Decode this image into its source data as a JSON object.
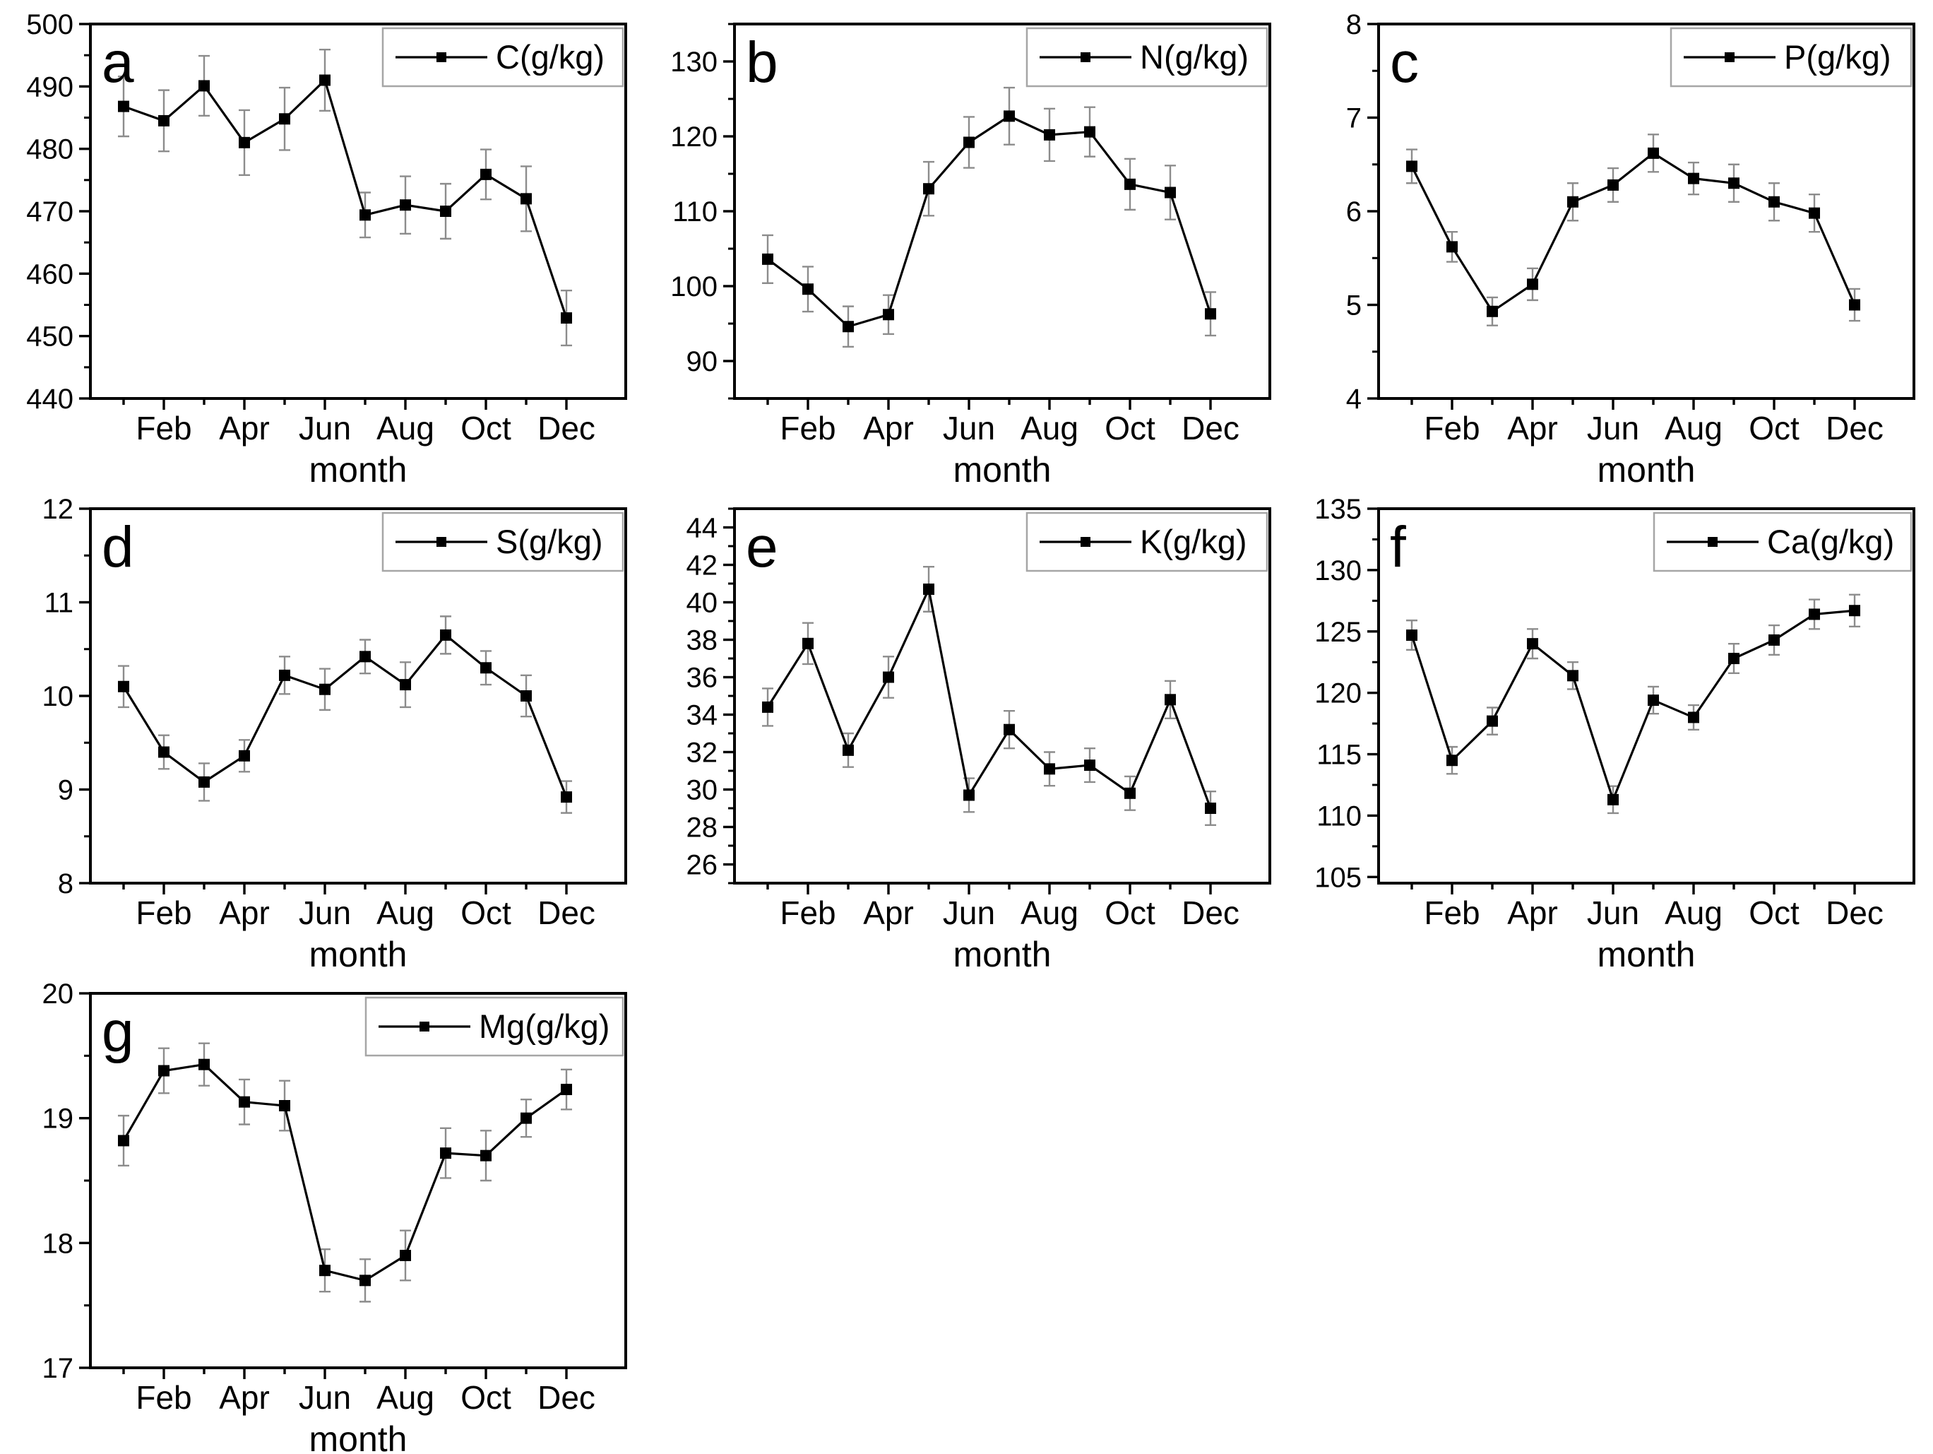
{
  "figure": {
    "background": "#ffffff",
    "xlabel": "month",
    "months": [
      "Jan",
      "Feb",
      "Mar",
      "Apr",
      "May",
      "Jun",
      "Jul",
      "Aug",
      "Sep",
      "Oct",
      "Nov",
      "Dec"
    ],
    "x_tick_labels_shown": [
      "Feb",
      "Apr",
      "Jun",
      "Aug",
      "Oct",
      "Dec"
    ],
    "colors": {
      "line": "#000000",
      "marker": "#000000",
      "error_bar": "#8c8c8c",
      "legend_border": "#a6a6a6",
      "axis": "#000000",
      "text": "#000000"
    }
  },
  "chart_data": [
    {
      "type": "line",
      "panel_letter": "a",
      "legend": "C(g/kg)",
      "x": [
        "Jan",
        "Feb",
        "Mar",
        "Apr",
        "May",
        "Jun",
        "Jul",
        "Aug",
        "Sep",
        "Oct",
        "Nov",
        "Dec"
      ],
      "values": [
        486.8,
        484.5,
        490.1,
        481.0,
        484.8,
        491.0,
        469.4,
        471.0,
        470.0,
        475.9,
        472.0,
        452.9
      ],
      "errors": [
        4.8,
        4.9,
        4.8,
        5.2,
        5.0,
        4.9,
        3.6,
        4.6,
        4.4,
        4.0,
        5.2,
        4.4
      ],
      "ylim": [
        440,
        500
      ],
      "yticks": [
        440,
        450,
        460,
        470,
        480,
        490,
        500
      ],
      "ytick_labels": [
        "440",
        "450",
        "460",
        "470",
        "480",
        "490",
        "500"
      ],
      "yminor_step": 5,
      "xlabel": "month",
      "grid": false,
      "legend_position": "top-right",
      "marker": "square"
    },
    {
      "type": "line",
      "panel_letter": "b",
      "legend": "N(g/kg)",
      "x": [
        "Jan",
        "Feb",
        "Mar",
        "Apr",
        "May",
        "Jun",
        "Jul",
        "Aug",
        "Sep",
        "Oct",
        "Nov",
        "Dec"
      ],
      "values": [
        103.6,
        99.6,
        94.6,
        96.2,
        113.0,
        119.2,
        122.7,
        120.2,
        120.6,
        113.6,
        112.5,
        96.3
      ],
      "errors": [
        3.2,
        3.0,
        2.7,
        2.6,
        3.6,
        3.4,
        3.8,
        3.5,
        3.3,
        3.4,
        3.6,
        2.9
      ],
      "ylim": [
        85,
        135
      ],
      "yticks": [
        90,
        100,
        110,
        120,
        130
      ],
      "ytick_labels": [
        "90",
        "100",
        "110",
        "120",
        "130"
      ],
      "yminor_step": 5,
      "xlabel": "month",
      "grid": false,
      "legend_position": "top-right",
      "marker": "square"
    },
    {
      "type": "line",
      "panel_letter": "c",
      "legend": "P(g/kg)",
      "x": [
        "Jan",
        "Feb",
        "Mar",
        "Apr",
        "May",
        "Jun",
        "Jul",
        "Aug",
        "Sep",
        "Oct",
        "Nov",
        "Dec"
      ],
      "values": [
        6.48,
        5.62,
        4.93,
        5.22,
        6.1,
        6.28,
        6.62,
        6.35,
        6.3,
        6.1,
        5.98,
        5.0
      ],
      "errors": [
        0.18,
        0.16,
        0.15,
        0.17,
        0.2,
        0.18,
        0.2,
        0.17,
        0.2,
        0.2,
        0.2,
        0.17
      ],
      "ylim": [
        4,
        8
      ],
      "yticks": [
        4,
        5,
        6,
        7,
        8
      ],
      "ytick_labels": [
        "4",
        "5",
        "6",
        "7",
        "8"
      ],
      "yminor_step": 0.5,
      "xlabel": "month",
      "grid": false,
      "legend_position": "top-right",
      "marker": "square"
    },
    {
      "type": "line",
      "panel_letter": "d",
      "legend": "S(g/kg)",
      "x": [
        "Jan",
        "Feb",
        "Mar",
        "Apr",
        "May",
        "Jun",
        "Jul",
        "Aug",
        "Sep",
        "Oct",
        "Nov",
        "Dec"
      ],
      "values": [
        10.1,
        9.4,
        9.08,
        9.36,
        10.22,
        10.07,
        10.42,
        10.12,
        10.65,
        10.3,
        10.0,
        8.92
      ],
      "errors": [
        0.22,
        0.18,
        0.2,
        0.17,
        0.2,
        0.22,
        0.18,
        0.24,
        0.2,
        0.18,
        0.22,
        0.17
      ],
      "ylim": [
        8,
        12
      ],
      "yticks": [
        8,
        9,
        10,
        11,
        12
      ],
      "ytick_labels": [
        "8",
        "9",
        "10",
        "11",
        "12"
      ],
      "yminor_step": 0.5,
      "xlabel": "month",
      "grid": false,
      "legend_position": "top-right",
      "marker": "square"
    },
    {
      "type": "line",
      "panel_letter": "e",
      "legend": "K(g/kg)",
      "x": [
        "Jan",
        "Feb",
        "Mar",
        "Apr",
        "May",
        "Jun",
        "Jul",
        "Aug",
        "Sep",
        "Oct",
        "Nov",
        "Dec"
      ],
      "values": [
        34.4,
        37.8,
        32.1,
        36.0,
        40.7,
        29.7,
        33.2,
        31.1,
        31.3,
        29.8,
        34.8,
        29.0
      ],
      "errors": [
        1.0,
        1.1,
        0.9,
        1.1,
        1.2,
        0.9,
        1.0,
        0.9,
        0.9,
        0.9,
        1.0,
        0.9
      ],
      "ylim": [
        25,
        45
      ],
      "yticks": [
        26,
        28,
        30,
        32,
        34,
        36,
        38,
        40,
        42,
        44
      ],
      "ytick_labels": [
        "26",
        "28",
        "30",
        "32",
        "34",
        "36",
        "38",
        "40",
        "42",
        "44"
      ],
      "yminor_step": 1,
      "xlabel": "month",
      "grid": false,
      "legend_position": "top-right",
      "marker": "square"
    },
    {
      "type": "line",
      "panel_letter": "f",
      "legend": "Ca(g/kg)",
      "x": [
        "Jan",
        "Feb",
        "Mar",
        "Apr",
        "May",
        "Jun",
        "Jul",
        "Aug",
        "Sep",
        "Oct",
        "Nov",
        "Dec"
      ],
      "values": [
        124.7,
        114.5,
        117.7,
        124.0,
        121.4,
        111.3,
        119.4,
        118.0,
        122.8,
        124.3,
        126.4,
        126.7
      ],
      "errors": [
        1.2,
        1.1,
        1.1,
        1.2,
        1.1,
        1.1,
        1.1,
        1.0,
        1.2,
        1.2,
        1.2,
        1.3
      ],
      "ylim": [
        104.5,
        135
      ],
      "yticks": [
        105,
        110,
        115,
        120,
        125,
        130,
        135
      ],
      "ytick_labels": [
        "105",
        "110",
        "115",
        "120",
        "125",
        "130",
        "135"
      ],
      "yminor_step": 2.5,
      "xlabel": "month",
      "grid": false,
      "legend_position": "top-right",
      "marker": "square"
    },
    {
      "type": "line",
      "panel_letter": "g",
      "legend": "Mg(g/kg)",
      "x": [
        "Jan",
        "Feb",
        "Mar",
        "Apr",
        "May",
        "Jun",
        "Jul",
        "Aug",
        "Sep",
        "Oct",
        "Nov",
        "Dec"
      ],
      "values": [
        18.82,
        19.38,
        19.43,
        19.13,
        19.1,
        17.78,
        17.7,
        17.9,
        18.72,
        18.7,
        19.0,
        19.23
      ],
      "errors": [
        0.2,
        0.18,
        0.17,
        0.18,
        0.2,
        0.17,
        0.17,
        0.2,
        0.2,
        0.2,
        0.15,
        0.16
      ],
      "ylim": [
        17,
        20
      ],
      "yticks": [
        17,
        18,
        19,
        20
      ],
      "ytick_labels": [
        "17",
        "18",
        "19",
        "20"
      ],
      "yminor_step": 0.5,
      "xlabel": "month",
      "grid": false,
      "legend_position": "top-right",
      "marker": "square"
    }
  ]
}
